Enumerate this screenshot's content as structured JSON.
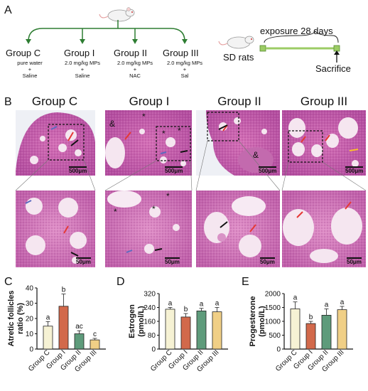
{
  "panelA": {
    "letter": "A",
    "groups": [
      {
        "name": "Group C",
        "treatment": [
          "pure water",
          "+",
          "Saline"
        ]
      },
      {
        "name": "Group I",
        "treatment": [
          "2.0 mg/kg MPs",
          "+",
          "Saline"
        ]
      },
      {
        "name": "Group II",
        "treatment": [
          "2.0 mg/kg MPs",
          "+",
          "NAC"
        ]
      },
      {
        "name": "Group III",
        "treatment": [
          "2.0 mg/kg MPs",
          "+",
          "Sal"
        ]
      }
    ],
    "rats_label": "SD rats",
    "exposure_label": "exposure 28 days",
    "sacrifice_label": "Sacrifice",
    "line_color": "#2e7d32",
    "bar_color": "#9ccc65"
  },
  "panelB": {
    "letter": "B",
    "titles": [
      "Group C",
      "Group I",
      "Group II",
      "Group III"
    ],
    "scale_top": "500μm",
    "scale_bottom": "50μm",
    "markers": [
      "&",
      "*"
    ]
  },
  "panelC": {
    "letter": "C",
    "chart_data": {
      "type": "bar",
      "categories": [
        "Group C",
        "Group I",
        "Group II",
        "Group III"
      ],
      "values": [
        15,
        28,
        10,
        6
      ],
      "errors": [
        3,
        8,
        2,
        1
      ],
      "letters": [
        "a",
        "b",
        "ac",
        "c"
      ],
      "ylabel": "Atretic follicles ratio (%)",
      "ylim": [
        0,
        40
      ],
      "yticks": [
        0,
        10,
        20,
        30,
        40
      ],
      "colors": [
        "#f6f2d4",
        "#d2694b",
        "#5e9b7b",
        "#f0cf86"
      ]
    }
  },
  "panelD": {
    "letter": "D",
    "chart_data": {
      "type": "bar",
      "categories": [
        "Group C",
        "Group I",
        "Group II",
        "Group III"
      ],
      "values": [
        230,
        185,
        220,
        215
      ],
      "errors": [
        10,
        20,
        15,
        25
      ],
      "letters": [
        "a",
        "b",
        "a",
        "a"
      ],
      "ylabel": "Estrogen (pmol/L)",
      "ylim": [
        0,
        320
      ],
      "yticks": [
        0,
        80,
        160,
        240,
        320
      ],
      "colors": [
        "#f6f2d4",
        "#d2694b",
        "#5e9b7b",
        "#f0cf86"
      ]
    }
  },
  "panelE": {
    "letter": "E",
    "chart_data": {
      "type": "bar",
      "categories": [
        "Group C",
        "Group I",
        "Group II",
        "Group III"
      ],
      "values": [
        1450,
        920,
        1220,
        1420
      ],
      "errors": [
        250,
        80,
        230,
        120
      ],
      "letters": [
        "a",
        "b",
        "a",
        "a"
      ],
      "ylabel": "Progesterone (pmol/L)",
      "ylim": [
        0,
        2000
      ],
      "yticks": [
        0,
        500,
        1000,
        1500,
        2000
      ],
      "colors": [
        "#f6f2d4",
        "#d2694b",
        "#5e9b7b",
        "#f0cf86"
      ]
    }
  }
}
